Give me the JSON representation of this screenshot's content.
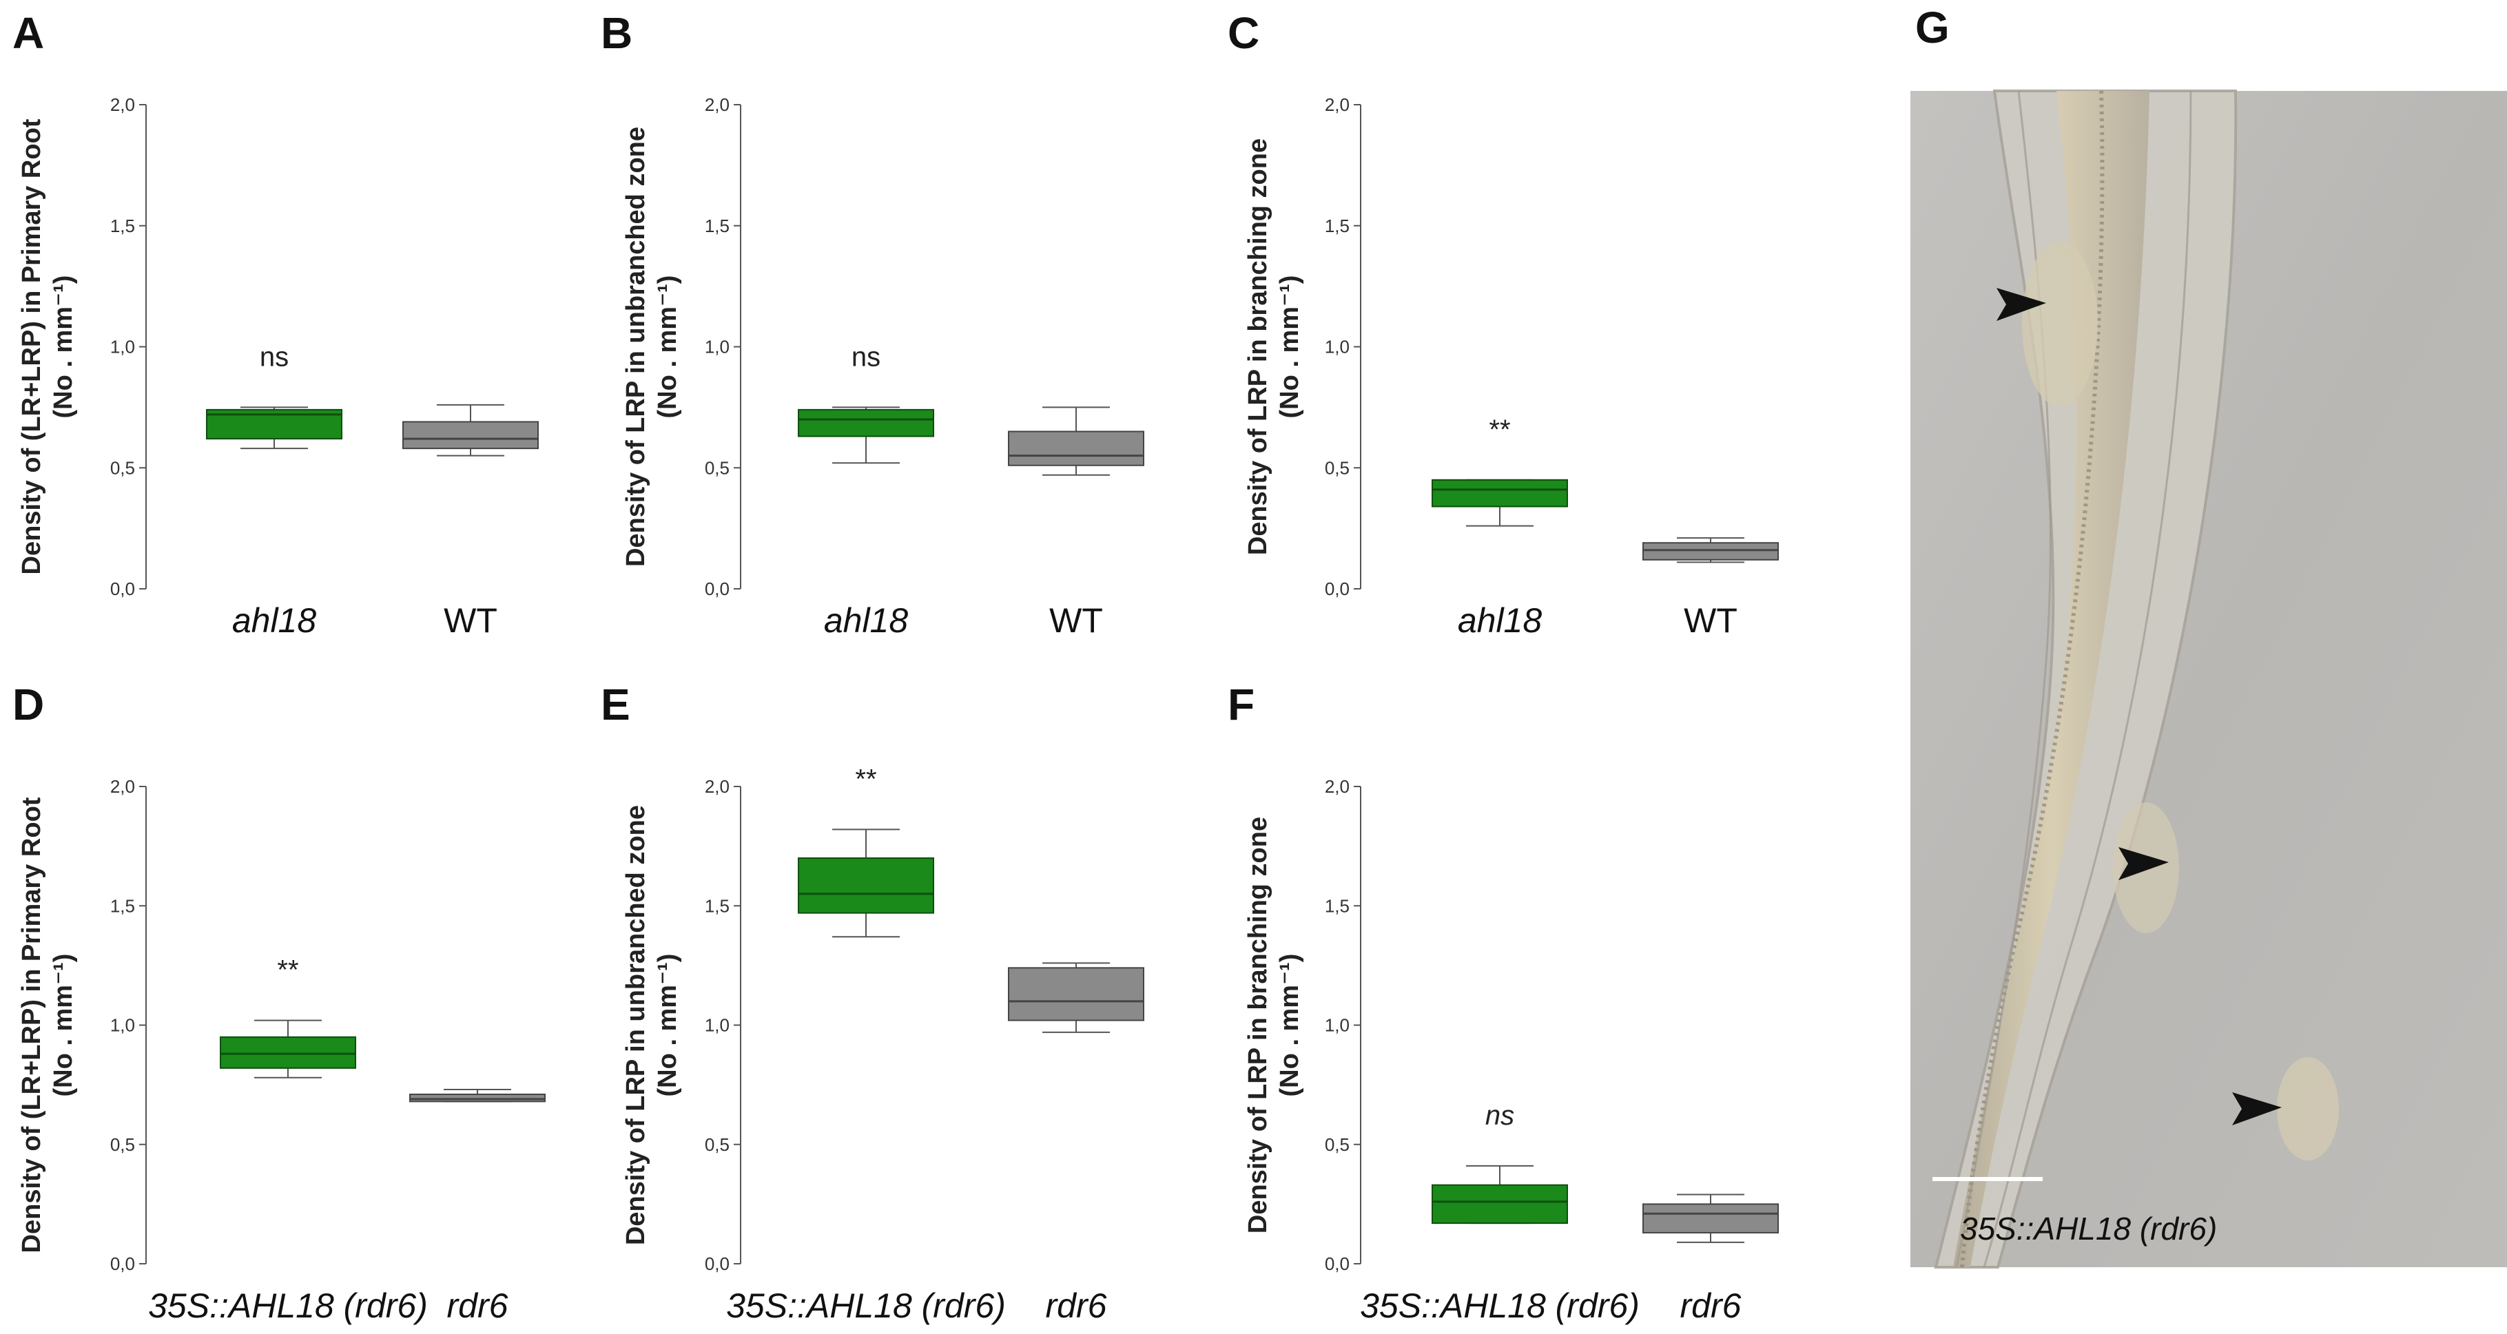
{
  "figure": {
    "photo": {
      "letter": "G",
      "caption": "35S::AHL18 (rdr6)",
      "arrowheads": 3,
      "has_scale_bar": true
    },
    "colors": {
      "green_fill": "#1a8a1a",
      "green_edge": "#0e4f0e",
      "gray_fill": "#8a8a8a",
      "gray_edge": "#444444",
      "axis": "#555555"
    }
  },
  "chart_data": [
    {
      "panel": "A",
      "type": "boxplot",
      "ylabel_line1": "Density of  (LR+LRP) in Primary Root",
      "ylabel_line2": "(No . mm⁻¹)",
      "ylim": [
        0,
        2
      ],
      "yticks": [
        "0,0",
        "0,5",
        "1,0",
        "1,5",
        "2,0"
      ],
      "categories": [
        "ahl18",
        "WT"
      ],
      "italic_categories": [
        true,
        false
      ],
      "boxes": [
        {
          "min": 0.58,
          "q1": 0.62,
          "median": 0.72,
          "q3": 0.74,
          "max": 0.75,
          "color": "green"
        },
        {
          "min": 0.55,
          "q1": 0.58,
          "median": 0.62,
          "q3": 0.69,
          "max": 0.76,
          "color": "gray"
        }
      ],
      "significance": {
        "text": "ns",
        "italic": false,
        "at": 0
      }
    },
    {
      "panel": "B",
      "type": "boxplot",
      "ylabel_line1": "Density of  LRP in unbranched zone",
      "ylabel_line2": "(No . mm⁻¹)",
      "ylim": [
        0,
        2
      ],
      "yticks": [
        "0,0",
        "0,5",
        "1,0",
        "1,5",
        "2,0"
      ],
      "categories": [
        "ahl18",
        "WT"
      ],
      "italic_categories": [
        true,
        false
      ],
      "boxes": [
        {
          "min": 0.52,
          "q1": 0.63,
          "median": 0.7,
          "q3": 0.74,
          "max": 0.75,
          "color": "green"
        },
        {
          "min": 0.47,
          "q1": 0.51,
          "median": 0.55,
          "q3": 0.65,
          "max": 0.75,
          "color": "gray"
        }
      ],
      "significance": {
        "text": "ns",
        "italic": false,
        "at": 0
      }
    },
    {
      "panel": "C",
      "type": "boxplot",
      "ylabel_line1": "Density of  LRP in branching zone",
      "ylabel_line2": "(No . mm⁻¹)",
      "ylim": [
        0,
        2
      ],
      "yticks": [
        "0,0",
        "0,5",
        "1,0",
        "1,5",
        "2,0"
      ],
      "categories": [
        "ahl18",
        "WT"
      ],
      "italic_categories": [
        true,
        false
      ],
      "boxes": [
        {
          "min": 0.26,
          "q1": 0.34,
          "median": 0.41,
          "q3": 0.45,
          "max": 0.45,
          "color": "green"
        },
        {
          "min": 0.11,
          "q1": 0.12,
          "median": 0.16,
          "q3": 0.19,
          "max": 0.21,
          "color": "gray"
        }
      ],
      "significance": {
        "text": "**",
        "italic": false,
        "at": 0
      }
    },
    {
      "panel": "D",
      "type": "boxplot",
      "ylabel_line1": "Density of  (LR+LRP) in Primary Root",
      "ylabel_line2": "(No . mm⁻¹)",
      "ylim": [
        0,
        2
      ],
      "yticks": [
        "0,0",
        "0,5",
        "1,0",
        "1,5",
        "2,0"
      ],
      "categories": [
        "35S::AHL18 (rdr6)",
        "rdr6"
      ],
      "italic_categories": [
        true,
        true
      ],
      "boxes": [
        {
          "min": 0.78,
          "q1": 0.82,
          "median": 0.88,
          "q3": 0.95,
          "max": 1.02,
          "color": "green"
        },
        {
          "min": 0.68,
          "q1": 0.68,
          "median": 0.69,
          "q3": 0.71,
          "max": 0.73,
          "color": "gray"
        }
      ],
      "significance": {
        "text": "**",
        "italic": false,
        "at": 0
      }
    },
    {
      "panel": "E",
      "type": "boxplot",
      "ylabel_line1": "Density of  LRP in unbranched zone",
      "ylabel_line2": "(No . mm⁻¹)",
      "ylim": [
        0,
        2
      ],
      "yticks": [
        "0,0",
        "0,5",
        "1,0",
        "1,5",
        "2,0"
      ],
      "categories": [
        "35S::AHL18 (rdr6)",
        "rdr6"
      ],
      "italic_categories": [
        true,
        true
      ],
      "boxes": [
        {
          "min": 1.37,
          "q1": 1.47,
          "median": 1.55,
          "q3": 1.7,
          "max": 1.82,
          "color": "green"
        },
        {
          "min": 0.97,
          "q1": 1.02,
          "median": 1.1,
          "q3": 1.24,
          "max": 1.26,
          "color": "gray"
        }
      ],
      "significance": {
        "text": "**",
        "italic": false,
        "at": 0
      }
    },
    {
      "panel": "F",
      "type": "boxplot",
      "ylabel_line1": "Density of  LRP in branching zone",
      "ylabel_line2": "(No . mm⁻¹)",
      "ylim": [
        0,
        2
      ],
      "yticks": [
        "0,0",
        "0,5",
        "1,0",
        "1,5",
        "2,0"
      ],
      "categories": [
        "35S::AHL18 (rdr6)",
        "rdr6"
      ],
      "italic_categories": [
        true,
        true
      ],
      "boxes": [
        {
          "min": 0.17,
          "q1": 0.17,
          "median": 0.26,
          "q3": 0.33,
          "max": 0.41,
          "color": "green"
        },
        {
          "min": 0.09,
          "q1": 0.13,
          "median": 0.21,
          "q3": 0.25,
          "max": 0.29,
          "color": "gray"
        }
      ],
      "significance": {
        "text": "ns",
        "italic": true,
        "at": 0
      }
    }
  ]
}
